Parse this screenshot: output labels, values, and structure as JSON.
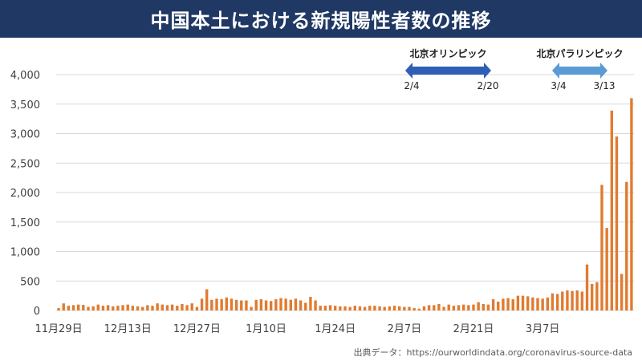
{
  "title": "中国本土における新規陽性者数の推移",
  "source": "出典データ：https://ourworldindata.org/coronavirus-source-data",
  "colors": {
    "bar": "#e07b30",
    "title_bg": "#1f3864",
    "olympic_arrow": "#2e5fb5",
    "paralympic_arrow": "#5b9bd5",
    "grid": "#d9d9d9"
  },
  "chart_data": {
    "type": "bar",
    "title": "中国本土における新規陽性者数の推移",
    "xlabel": "",
    "ylabel": "",
    "ylim": [
      0,
      4000
    ],
    "yticks": [
      0,
      500,
      1000,
      1500,
      2000,
      2500,
      3000,
      3500,
      4000
    ],
    "ytick_labels": [
      "0",
      "500",
      "1,000",
      "1,500",
      "2,000",
      "2,500",
      "3,000",
      "3,500",
      "4,000"
    ],
    "start_date": "2021-11-29",
    "xtick_labels": [
      {
        "label": "11月29日",
        "index": 0
      },
      {
        "label": "12月13日",
        "index": 14
      },
      {
        "label": "12月27日",
        "index": 28
      },
      {
        "label": "1月10日",
        "index": 42
      },
      {
        "label": "1月24日",
        "index": 56
      },
      {
        "label": "2月7日",
        "index": 70
      },
      {
        "label": "2月21日",
        "index": 84
      },
      {
        "label": "3月7日",
        "index": 98
      }
    ],
    "values": [
      40,
      120,
      80,
      90,
      100,
      95,
      60,
      70,
      100,
      80,
      90,
      70,
      80,
      90,
      100,
      80,
      70,
      60,
      90,
      80,
      120,
      100,
      90,
      100,
      80,
      110,
      90,
      120,
      60,
      200,
      360,
      180,
      200,
      190,
      220,
      200,
      180,
      170,
      170,
      60,
      180,
      190,
      170,
      160,
      190,
      210,
      200,
      180,
      200,
      170,
      130,
      230,
      170,
      80,
      80,
      90,
      80,
      70,
      70,
      60,
      80,
      70,
      60,
      80,
      80,
      70,
      60,
      70,
      80,
      70,
      60,
      60,
      40,
      30,
      70,
      90,
      90,
      110,
      60,
      100,
      80,
      90,
      100,
      90,
      100,
      140,
      110,
      100,
      190,
      150,
      200,
      210,
      190,
      250,
      250,
      240,
      220,
      210,
      200,
      220,
      290,
      280,
      320,
      340,
      330,
      340,
      320,
      780,
      450,
      480,
      2130,
      1400,
      3390,
      2950,
      620,
      2180,
      3600
    ],
    "annotations": [
      {
        "label": "北京オリンピック",
        "start": "2/4",
        "end": "2/20"
      },
      {
        "label": "北京パラリンピック",
        "start": "3/4",
        "end": "3/13"
      }
    ]
  }
}
